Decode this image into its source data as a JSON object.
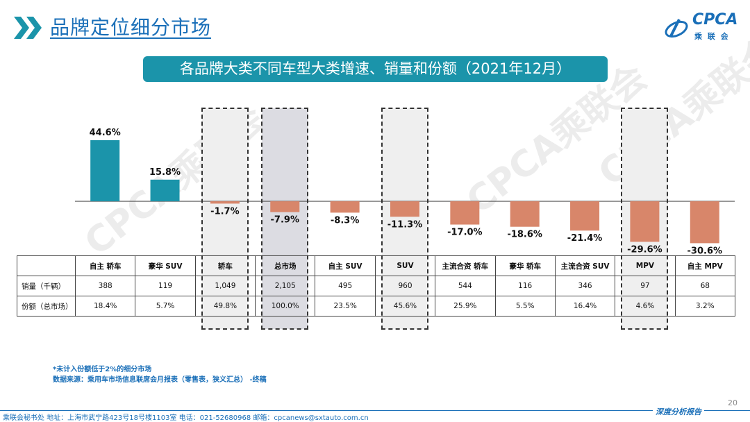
{
  "header": {
    "title": "品牌定位细分市场",
    "logo_en": "CPCA",
    "logo_cn": "乘 联 会"
  },
  "banner": {
    "text": "各品牌大类不同车型大类增速、销量和份额（2021年12月）"
  },
  "colors": {
    "positive": "#1b94aa",
    "negative": "#d8866a",
    "accent": "#1a6fb8"
  },
  "watermark": [
    "CPCA乘联会",
    "CPCA乘联会",
    "CPCA乘联会"
  ],
  "chart_data": {
    "type": "bar",
    "title": "各品牌大类不同车型大类增速、销量和份额（2021年12月）",
    "categories": [
      "自主 轿车",
      "豪华 SUV",
      "轿车",
      "总市场",
      "自主 SUV",
      "SUV",
      "主流合资 轿车",
      "豪华 轿车",
      "主流合资 SUV",
      "MPV",
      "自主 MPV"
    ],
    "series": [
      {
        "values": [
          44.6,
          15.8,
          -1.7,
          -7.9,
          -8.3,
          -11.3,
          -17.0,
          -18.6,
          -21.4,
          -29.6,
          -30.6
        ]
      }
    ],
    "value_labels": [
      "44.6%",
      "15.8%",
      "-1.7%",
      "-7.9%",
      "-8.3%",
      "-11.3%",
      "-17.0%",
      "-18.6%",
      "-21.4%",
      "-29.6%",
      "-30.6%"
    ],
    "highlighted": [
      "轿车",
      "总市场",
      "SUV",
      "MPV"
    ],
    "grid": false
  },
  "table": {
    "rows": [
      {
        "label": "销量（千辆）",
        "values": [
          "388",
          "119",
          "1,049",
          "2,105",
          "495",
          "960",
          "544",
          "116",
          "346",
          "97",
          "68"
        ]
      },
      {
        "label": "份额（总市场）",
        "values": [
          "18.4%",
          "5.7%",
          "49.8%",
          "100.0%",
          "23.5%",
          "45.6%",
          "25.9%",
          "5.5%",
          "16.4%",
          "4.6%",
          "3.2%"
        ]
      }
    ]
  },
  "notes": {
    "line1": "*未计入份额低于2%的细分市场",
    "line2": "数据来源：乘用车市场信息联席会月报表（零售表，狭义汇总）  -终稿"
  },
  "footer": {
    "text": "乘联会秘书处   地址：上海市武宁路423号18号楼1103室   电话：021-52680968   邮箱：cpcanews@sxtauto.com.cn",
    "right": "深度分析报告",
    "page": "20"
  }
}
